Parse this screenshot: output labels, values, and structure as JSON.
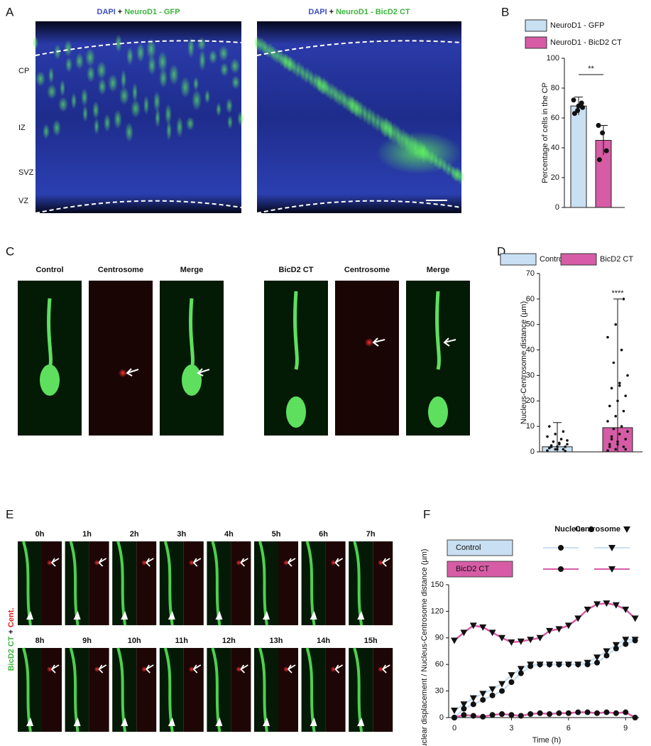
{
  "panelA": {
    "label": "A",
    "images": [
      {
        "title": [
          "DAPI",
          "+",
          "NeuroD1 - GFP"
        ]
      },
      {
        "title": [
          "DAPI",
          "+",
          "NeuroD1 - BicD2 CT"
        ]
      }
    ],
    "zones": [
      "CP",
      "IZ",
      "SVZ",
      "VZ"
    ]
  },
  "panelC": {
    "label": "C",
    "titles": [
      "Control",
      "Centrosome",
      "Merge",
      "BicD2 CT",
      "Centrosome",
      "Merge"
    ]
  },
  "panelE": {
    "label": "E",
    "side": [
      "BicD2 CT",
      "+",
      "Cent."
    ],
    "times": [
      "0h",
      "1h",
      "2h",
      "3h",
      "4h",
      "5h",
      "6h",
      "7h",
      "8h",
      "9h",
      "10h",
      "11h",
      "12h",
      "13h",
      "14h",
      "15h"
    ]
  },
  "chart_data": [
    {
      "type": "bar",
      "label": "B",
      "ylabel": "Percentage of cells in the CP",
      "series": [
        {
          "name": "NeuroD1 - GFP",
          "color": "#c9e0f3"
        },
        {
          "name": "NeuroD1 - BicD2 CT",
          "color": "#d65ca6"
        }
      ],
      "values": [
        68,
        45
      ],
      "errors": [
        6,
        10
      ],
      "points": [
        [
          72,
          65,
          70,
          63,
          68,
          67
        ],
        [
          55,
          50,
          38,
          32
        ]
      ],
      "ylim": [
        0,
        100
      ],
      "yticks": [
        0,
        20,
        40,
        60,
        80,
        100
      ],
      "annotation": "**"
    },
    {
      "type": "bar",
      "label": "D",
      "ylabel": "Nucleus-Centrosome distance (µm)",
      "series": [
        {
          "name": "Control",
          "color": "#c9e0f3"
        },
        {
          "name": "BicD2 CT",
          "color": "#d65ca6"
        }
      ],
      "values": [
        2,
        9.5
      ],
      "whisker_top": [
        11.5,
        60
      ],
      "points": [
        [
          0.5,
          1,
          1,
          1.5,
          2,
          2,
          2.5,
          3,
          3,
          4,
          5,
          6,
          7,
          8,
          10,
          1,
          0.3,
          2,
          3.5,
          4.5
        ],
        [
          0.5,
          1,
          2,
          3,
          4,
          5,
          6,
          7,
          8,
          9,
          10,
          12,
          14,
          16,
          18,
          20,
          22,
          25,
          27,
          30,
          35,
          40,
          45,
          50,
          60,
          2,
          3,
          1,
          5,
          26
        ]
      ],
      "ylim": [
        0,
        70
      ],
      "yticks": [
        0,
        10,
        20,
        30,
        40,
        50,
        60,
        70
      ],
      "annotation": "****"
    },
    {
      "type": "line",
      "label": "F",
      "xlabel": "Time (h)",
      "ylabel": "Nuclear displacement / Nucleus-Centrosome distance (µm)",
      "legend": {
        "markers": [
          "Nucleus",
          "Centrosome"
        ],
        "groups": [
          {
            "name": "Control",
            "color": "#c9e0f3"
          },
          {
            "name": "BicD2 CT",
            "color": "#d65ca6"
          }
        ]
      },
      "x": [
        0,
        0.5,
        1,
        1.5,
        2,
        2.5,
        3,
        3.5,
        4,
        4.5,
        5,
        5.5,
        6,
        6.5,
        7,
        7.5,
        8,
        8.5,
        9,
        9.5
      ],
      "series": [
        {
          "group": 0,
          "marker": "circle",
          "values": [
            0,
            10,
            15,
            20,
            25,
            30,
            40,
            50,
            58,
            60,
            60,
            60,
            60,
            60,
            60,
            62,
            70,
            78,
            83,
            87
          ]
        },
        {
          "group": 0,
          "marker": "triangle",
          "values": [
            8,
            15,
            22,
            27,
            32,
            38,
            48,
            55,
            60,
            60,
            60,
            60,
            60,
            60,
            62,
            68,
            75,
            82,
            88,
            88
          ]
        },
        {
          "group": 1,
          "marker": "circle",
          "values": [
            0,
            3,
            2,
            1,
            3,
            4,
            3,
            2,
            4,
            5,
            4,
            5,
            5,
            6,
            6,
            5,
            6,
            5,
            6,
            0
          ]
        },
        {
          "group": 1,
          "marker": "triangle",
          "values": [
            87,
            96,
            104,
            102,
            96,
            90,
            85,
            86,
            88,
            90,
            98,
            100,
            104,
            112,
            122,
            128,
            129,
            127,
            122,
            112
          ]
        }
      ],
      "xlim": [
        0,
        9.7
      ],
      "xticks": [
        0,
        3,
        6,
        9
      ],
      "ylim": [
        0,
        150
      ],
      "yticks": [
        0,
        30,
        60,
        90,
        120,
        150
      ]
    }
  ]
}
